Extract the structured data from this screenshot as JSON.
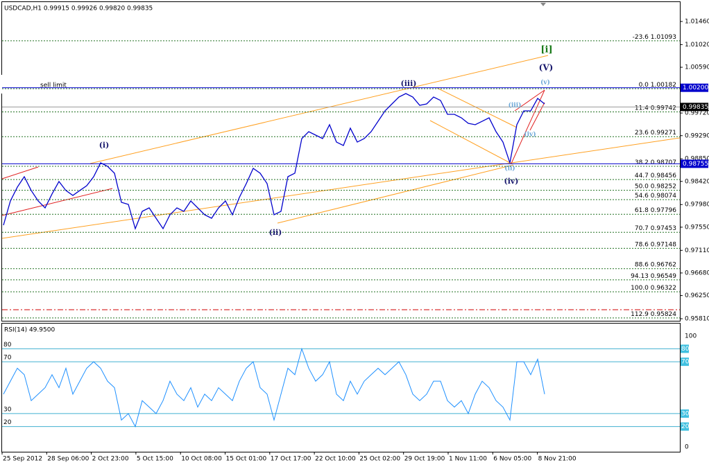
{
  "header": "USDCAD,H1  0.99915 0.99926 0.99820 0.99835",
  "sell_limit": "sell limit",
  "price_axis": [
    {
      "value": 1.0146,
      "label": "1.01460"
    },
    {
      "value": 1.0102,
      "label": "1.01020"
    },
    {
      "value": 1.0059,
      "label": "1.00590"
    },
    {
      "value": 0.9972,
      "label": "0.99720"
    },
    {
      "value": 0.9929,
      "label": "0.99290"
    },
    {
      "value": 0.9885,
      "label": "0.98850"
    },
    {
      "value": 0.9842,
      "label": "0.98420"
    },
    {
      "value": 0.9798,
      "label": "0.97980"
    },
    {
      "value": 0.9755,
      "label": "0.97550"
    },
    {
      "value": 0.9711,
      "label": "0.97110"
    },
    {
      "value": 0.9668,
      "label": "0.96680"
    },
    {
      "value": 0.9625,
      "label": "0.96250"
    },
    {
      "value": 0.9581,
      "label": "0.95810"
    }
  ],
  "price_markers": [
    {
      "value": 1.002,
      "label": "1.00200",
      "color": "#0000cc"
    },
    {
      "value": 0.99835,
      "label": "0.99835",
      "color": "#000000"
    },
    {
      "value": 0.98755,
      "label": "0.98755",
      "color": "#0000cc"
    }
  ],
  "fib_levels": [
    {
      "ratio": "-23.6",
      "price": 1.01093
    },
    {
      "ratio": "0.0",
      "price": 1.00182
    },
    {
      "ratio": "11.4",
      "price": 0.99742
    },
    {
      "ratio": "23.6",
      "price": 0.99271
    },
    {
      "ratio": "38.2",
      "price": 0.98707
    },
    {
      "ratio": "44.7",
      "price": 0.98456
    },
    {
      "ratio": "50.0",
      "price": 0.98252
    },
    {
      "ratio": "54.6",
      "price": 0.98074
    },
    {
      "ratio": "61.8",
      "price": 0.97796
    },
    {
      "ratio": "70.7",
      "price": 0.97453
    },
    {
      "ratio": "78.6",
      "price": 0.97148
    },
    {
      "ratio": "88.6",
      "price": 0.96762
    },
    {
      "ratio": "94.13",
      "price": 0.96549
    },
    {
      "ratio": "100.0",
      "price": 0.96322
    },
    {
      "ratio": "112.9",
      "price": 0.95824
    }
  ],
  "price": {
    "values": [
      0.97588,
      0.98049,
      0.98312,
      0.9851,
      0.98247,
      0.98049,
      0.97917,
      0.98181,
      0.98418,
      0.98247,
      0.98154,
      0.98247,
      0.98339,
      0.9851,
      0.98773,
      0.98707,
      0.98576,
      0.98023,
      0.97983,
      0.97522,
      0.97851,
      0.97917,
      0.9772,
      0.97522,
      0.97786,
      0.97917,
      0.97851,
      0.98049,
      0.97917,
      0.97786,
      0.9772,
      0.97917,
      0.98049,
      0.97786,
      0.98115,
      0.98378,
      0.98668,
      0.98576,
      0.98378,
      0.97786,
      0.97851,
      0.9851,
      0.98576,
      0.99234,
      0.99366,
      0.993,
      0.99234,
      0.99498,
      0.99168,
      0.99103,
      0.99432,
      0.99168,
      0.99234,
      0.99366,
      0.99563,
      0.99761,
      0.99893,
      1.00024,
      1.0009,
      1.00024,
      0.99866,
      0.99893,
      1.00024,
      0.99959,
      0.99695,
      0.99695,
      0.99629,
      0.99524,
      0.99498,
      0.99563,
      0.99629,
      0.99366,
      0.99168,
      0.98773,
      0.99498,
      0.99761,
      0.99761,
      0.99998,
      0.99893
    ]
  },
  "waves": [
    {
      "text": "(i)",
      "color": "#1a1a6e"
    },
    {
      "text": "(ii)",
      "color": "#1a1a6e"
    },
    {
      "text": "(iii)",
      "color": "#1a1a6e"
    },
    {
      "text": "(iv)",
      "color": "#1a1a6e"
    },
    {
      "text": "(V)",
      "color": "#1a1a6e"
    },
    {
      "text": "[i]",
      "color": "#1a7a1a"
    },
    {
      "text": "(iii)",
      "color": "#6aa6d6"
    },
    {
      "text": "(iv)",
      "color": "#6aa6d6"
    },
    {
      "text": "(v)",
      "color": "#6aa6d6"
    },
    {
      "text": "(ii)",
      "color": "#6aa6d6"
    }
  ],
  "rsi": {
    "header": "RSI(14) 49.9500",
    "scale": [
      100,
      0
    ],
    "levels": [
      80,
      70,
      30,
      20
    ],
    "values": [
      45,
      55,
      65,
      60,
      40,
      45,
      50,
      60,
      50,
      65,
      45,
      55,
      65,
      70,
      65,
      55,
      50,
      25,
      30,
      20,
      40,
      35,
      30,
      40,
      55,
      45,
      40,
      50,
      35,
      45,
      40,
      50,
      45,
      40,
      55,
      65,
      70,
      50,
      45,
      25,
      45,
      65,
      60,
      80,
      65,
      55,
      60,
      70,
      45,
      40,
      55,
      45,
      55,
      60,
      65,
      60,
      65,
      70,
      60,
      45,
      40,
      45,
      55,
      55,
      40,
      35,
      40,
      30,
      45,
      55,
      50,
      40,
      35,
      25,
      70,
      70,
      60,
      72,
      45
    ]
  },
  "dates": [
    "25 Sep 2012",
    "28 Sep 06:00",
    "2 Oct 23:00",
    "5 Oct 15:00",
    "10 Oct 08:00",
    "15 Oct 01:00",
    "17 Oct 17:00",
    "22 Oct 10:00",
    "25 Oct 02:00",
    "29 Oct 19:00",
    "1 Nov 11:00",
    "6 Nov 05:00",
    "8 Nov 21:00"
  ]
}
